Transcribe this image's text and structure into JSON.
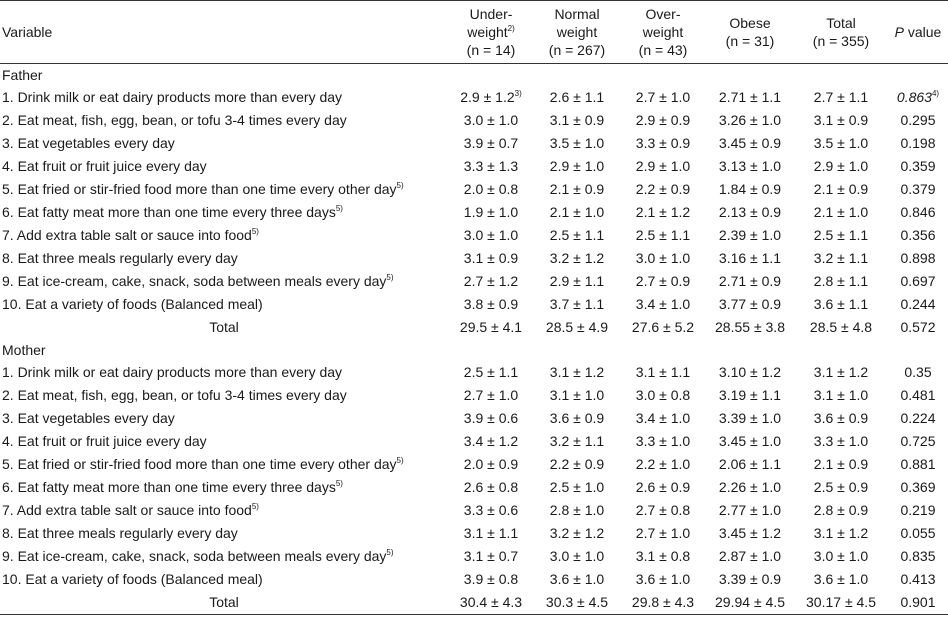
{
  "headers": {
    "variable": "Variable",
    "underweight_l1": "Under-",
    "underweight_l2": "weight",
    "underweight_sup": "2)",
    "underweight_n": "(n = 14)",
    "normal_l1": "Normal",
    "normal_l2": "weight",
    "normal_n": "(n = 267)",
    "overweight_l1": "Over-",
    "overweight_l2": "weight",
    "overweight_n": "(n = 43)",
    "obese_l1": "Obese",
    "obese_n": "(n = 31)",
    "total_l1": "Total",
    "total_n": "(n = 355)",
    "p_italic": "P",
    "p_rest": " value"
  },
  "father": {
    "label": "Father",
    "rows": [
      {
        "item": "1. Drink milk or eat dairy products more than every day",
        "sup": "",
        "u": "2.9 ± 1.2",
        "u_sup": "3)",
        "n": "2.6 ± 1.1",
        "o": "2.7 ± 1.0",
        "ob": "2.71 ± 1.1",
        "t": "2.7 ± 1.1",
        "p": "0.863",
        "p_sup": "4)"
      },
      {
        "item": "2. Eat meat, fish, egg, bean, or tofu 3-4 times every day",
        "sup": "",
        "u": "3.0 ± 1.0",
        "u_sup": "",
        "n": "3.1 ± 0.9",
        "o": "2.9 ± 0.9",
        "ob": "3.26 ± 1.0",
        "t": "3.1 ± 0.9",
        "p": "0.295",
        "p_sup": ""
      },
      {
        "item": "3. Eat vegetables every day",
        "sup": "",
        "u": "3.9 ± 0.7",
        "u_sup": "",
        "n": "3.5 ± 1.0",
        "o": "3.3 ± 0.9",
        "ob": "3.45 ± 0.9",
        "t": "3.5 ± 1.0",
        "p": "0.198",
        "p_sup": ""
      },
      {
        "item": "4. Eat fruit or fruit juice every day",
        "sup": "",
        "u": "3.3 ± 1.3",
        "u_sup": "",
        "n": "2.9 ± 1.0",
        "o": "2.9 ± 1.0",
        "ob": "3.13 ± 1.0",
        "t": "2.9 ± 1.0",
        "p": "0.359",
        "p_sup": ""
      },
      {
        "item": "5. Eat fried or stir-fried food more than one time every other day",
        "sup": "5)",
        "u": "2.0 ± 0.8",
        "u_sup": "",
        "n": "2.1 ± 0.9",
        "o": "2.2 ± 0.9",
        "ob": "1.84 ± 0.9",
        "t": "2.1 ± 0.9",
        "p": "0.379",
        "p_sup": ""
      },
      {
        "item": "6. Eat fatty meat more than one time every three days",
        "sup": "5)",
        "u": "1.9 ± 1.0",
        "u_sup": "",
        "n": "2.1 ± 1.0",
        "o": "2.1 ± 1.2",
        "ob": "2.13 ± 0.9",
        "t": "2.1 ± 1.0",
        "p": "0.846",
        "p_sup": ""
      },
      {
        "item": "7. Add extra table salt or sauce into food",
        "sup": "5)",
        "u": "3.0 ± 1.0",
        "u_sup": "",
        "n": "2.5 ± 1.1",
        "o": "2.5 ± 1.1",
        "ob": "2.39 ± 1.0",
        "t": "2.5 ± 1.1",
        "p": "0.356",
        "p_sup": ""
      },
      {
        "item": "8. Eat three meals regularly every day",
        "sup": "",
        "u": "3.1 ± 0.9",
        "u_sup": "",
        "n": "3.2 ± 1.2",
        "o": "3.0 ± 1.0",
        "ob": "3.16 ± 1.1",
        "t": "3.2 ± 1.1",
        "p": "0.898",
        "p_sup": ""
      },
      {
        "item": "9. Eat ice-cream, cake, snack, soda between meals every day",
        "sup": "5)",
        "u": "2.7 ± 1.2",
        "u_sup": "",
        "n": "2.9 ± 1.1",
        "o": "2.7 ± 0.9",
        "ob": "2.71 ± 0.9",
        "t": "2.8 ± 1.1",
        "p": "0.697",
        "p_sup": ""
      },
      {
        "item": "10. Eat a variety of foods (Balanced meal)",
        "sup": "",
        "u": "3.8 ± 0.9",
        "u_sup": "",
        "n": "3.7 ± 1.1",
        "o": "3.4 ± 1.0",
        "ob": "3.77 ± 0.9",
        "t": "3.6 ± 1.1",
        "p": "0.244",
        "p_sup": ""
      }
    ],
    "total": {
      "label": "Total",
      "u": "29.5 ± 4.1",
      "n": "28.5 ± 4.9",
      "o": "27.6 ± 5.2",
      "ob": "28.55 ± 3.8",
      "t": "28.5 ± 4.8",
      "p": "0.572"
    }
  },
  "mother": {
    "label": "Mother",
    "rows": [
      {
        "item": "1. Drink milk or eat dairy products more than every day",
        "sup": "",
        "u": "2.5 ± 1.1",
        "u_sup": "",
        "n": "3.1 ± 1.2",
        "o": "3.1 ± 1.1",
        "ob": "3.10 ± 1.2",
        "t": "3.1 ± 1.2",
        "p": "0.35",
        "p_sup": ""
      },
      {
        "item": "2. Eat meat, fish, egg, bean, or tofu 3-4 times every day",
        "sup": "",
        "u": "2.7 ± 1.0",
        "u_sup": "",
        "n": "3.1 ± 1.0",
        "o": "3.0 ± 0.8",
        "ob": "3.19 ± 1.1",
        "t": "3.1 ± 1.0",
        "p": "0.481",
        "p_sup": ""
      },
      {
        "item": "3. Eat vegetables every day",
        "sup": "",
        "u": "3.9 ± 0.6",
        "u_sup": "",
        "n": "3.6 ± 0.9",
        "o": "3.4 ± 1.0",
        "ob": "3.39 ± 1.0",
        "t": "3.6 ± 0.9",
        "p": "0.224",
        "p_sup": ""
      },
      {
        "item": "4. Eat fruit or fruit juice every day",
        "sup": "",
        "u": "3.4 ± 1.2",
        "u_sup": "",
        "n": "3.2 ± 1.1",
        "o": "3.3 ± 1.0",
        "ob": "3.45 ± 1.0",
        "t": "3.3 ± 1.0",
        "p": "0.725",
        "p_sup": ""
      },
      {
        "item": "5. Eat fried or stir-fried food more than one time every other day",
        "sup": "5)",
        "u": "2.0 ± 0.9",
        "u_sup": "",
        "n": "2.2 ± 0.9",
        "o": "2.2 ± 1.0",
        "ob": "2.06 ± 1.1",
        "t": "2.1 ± 0.9",
        "p": "0.881",
        "p_sup": ""
      },
      {
        "item": "6. Eat fatty meat more than one time every three days",
        "sup": "5)",
        "u": "2.6 ± 0.8",
        "u_sup": "",
        "n": "2.5 ± 1.0",
        "o": "2.6 ± 0.9",
        "ob": "2.26 ± 1.0",
        "t": "2.5 ± 0.9",
        "p": "0.369",
        "p_sup": ""
      },
      {
        "item": "7. Add extra table salt or sauce into food",
        "sup": "5)",
        "u": "3.3 ± 0.6",
        "u_sup": "",
        "n": "2.8 ± 1.0",
        "o": "2.7 ± 0.8",
        "ob": "2.77 ± 1.0",
        "t": "2.8 ± 0.9",
        "p": "0.219",
        "p_sup": ""
      },
      {
        "item": "8. Eat three meals regularly every day",
        "sup": "",
        "u": "3.1 ± 1.1",
        "u_sup": "",
        "n": "3.2 ± 1.2",
        "o": "2.7 ± 1.0",
        "ob": "3.45 ± 1.2",
        "t": "3.1 ± 1.2",
        "p": "0.055",
        "p_sup": ""
      },
      {
        "item": "9. Eat ice-cream, cake, snack, soda between meals every day",
        "sup": "5)",
        "u": "3.1 ± 0.7",
        "u_sup": "",
        "n": "3.0 ± 1.0",
        "o": "3.1 ± 0.8",
        "ob": "2.87 ± 1.0",
        "t": "3.0 ± 1.0",
        "p": "0.835",
        "p_sup": ""
      },
      {
        "item": "10. Eat a variety of foods (Balanced meal)",
        "sup": "",
        "u": "3.9 ± 0.8",
        "u_sup": "",
        "n": "3.6 ± 1.0",
        "o": "3.6 ± 1.0",
        "ob": "3.39 ± 0.9",
        "t": "3.6 ± 1.0",
        "p": "0.413",
        "p_sup": ""
      }
    ],
    "total": {
      "label": "Total",
      "u": "30.4 ± 4.3",
      "n": "30.3 ± 4.5",
      "o": "29.8 ± 4.3",
      "ob": "29.94 ± 4.5",
      "t": "30.17 ± 4.5",
      "p": "0.901"
    }
  }
}
